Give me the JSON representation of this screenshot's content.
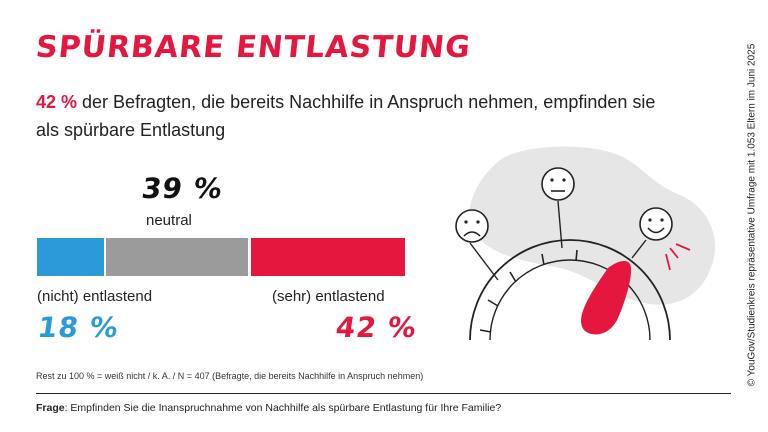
{
  "title": "SPÜRBARE ENTLASTUNG",
  "subtitle": {
    "highlight": "42 %",
    "rest": " der Befragten, die bereits Nachhilfe in Anspruch nehmen, empfinden sie als spürbare Entlastung"
  },
  "chart_data": {
    "type": "bar",
    "orientation": "horizontal-stacked",
    "total": 100,
    "segments": [
      {
        "label": "(nicht) entlastend",
        "value": 18,
        "display": "18 %",
        "color": "#2b9ad6"
      },
      {
        "label": "neutral",
        "value": 39,
        "display": "39 %",
        "color": "#9b9b9b"
      },
      {
        "label": "(sehr) entlastend",
        "value": 42,
        "display": "42 %",
        "color": "#e5173f"
      }
    ]
  },
  "note": "Rest zu 100 % = weiß nicht / k. A. / N = 407 (Befragte, die bereits Nachhilfe in Anspruch nehmen)",
  "question": {
    "label": "Frage",
    "text": ": Empfinden Sie die Inanspruchnahme von Nachhilfe als spürbare Entlastung für Ihre Familie?"
  },
  "source": "© YouGov/Studienkreis repräsentative Umfrage mit 1.053 Eltern im Juni 2025",
  "colors": {
    "accent": "#e5173f",
    "blue": "#2b9ad6",
    "grey": "#9b9b9b",
    "blob": "#e6e6e6"
  },
  "icons": [
    "sad-face-icon",
    "neutral-face-icon",
    "happy-face-icon",
    "gauge-icon"
  ]
}
